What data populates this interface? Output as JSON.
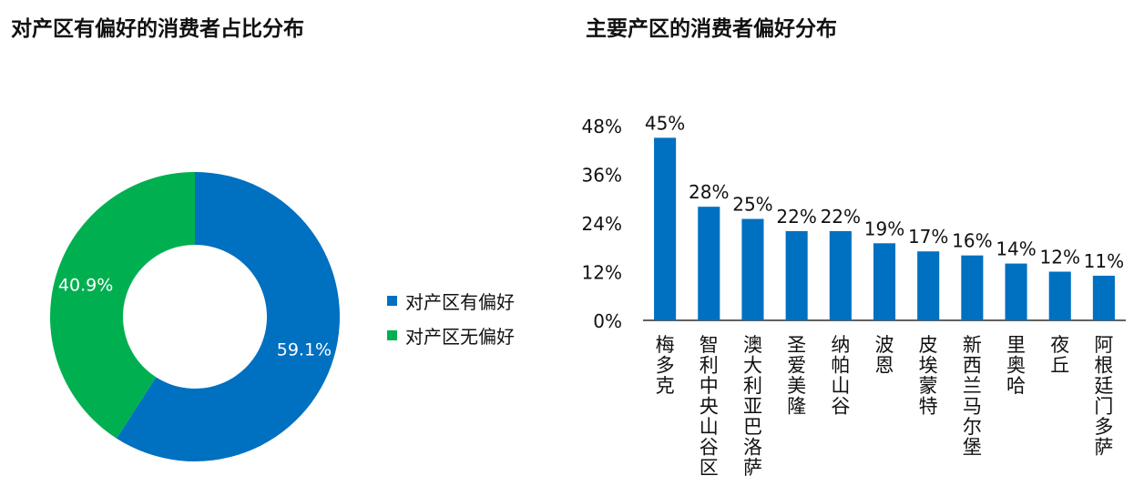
{
  "chart_data": [
    {
      "type": "pie",
      "title": "对产区有偏好的消费者占比分布",
      "donut": true,
      "categories": [
        "对产区有偏好",
        "对产区无偏好"
      ],
      "values": [
        59.1,
        40.9
      ],
      "value_labels": [
        "59.1%",
        "40.9%"
      ],
      "colors": [
        "#0070C0",
        "#00B050"
      ],
      "legend_position": "right"
    },
    {
      "type": "bar",
      "title": "主要产区的消费者偏好分布",
      "categories": [
        "梅多克",
        "智利中央山谷区",
        "澳大利亚巴洛萨",
        "圣爱美隆",
        "纳帕山谷",
        "波恩",
        "皮埃蒙特",
        "新西兰马尔堡",
        "里奥哈",
        "夜丘",
        "阿根廷门多萨"
      ],
      "values": [
        45,
        28,
        25,
        22,
        22,
        19,
        17,
        16,
        14,
        12,
        11
      ],
      "value_labels": [
        "45%",
        "28%",
        "25%",
        "22%",
        "22%",
        "19%",
        "17%",
        "16%",
        "14%",
        "12%",
        "11%"
      ],
      "ylim": [
        0,
        48
      ],
      "yticks": [
        0,
        12,
        24,
        36,
        48
      ],
      "ytick_labels": [
        "0%",
        "12%",
        "24%",
        "36%",
        "48%"
      ],
      "xlabel": "",
      "ylabel": "",
      "color": "#0070C0",
      "grid": false
    }
  ]
}
